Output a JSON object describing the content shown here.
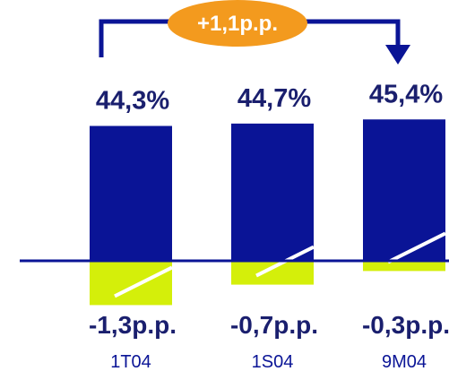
{
  "chart_data": {
    "type": "bar",
    "title": "",
    "categories": [
      "1T04",
      "1S04",
      "9M04"
    ],
    "series": [
      {
        "values": [
          44.3,
          44.7,
          45.4
        ],
        "labels": [
          "44,3%",
          "44,7%",
          "45,4%"
        ]
      },
      {
        "values": [
          -1.3,
          -0.7,
          -0.3
        ],
        "labels": [
          "-1,3p.p.",
          "-0,7p.p.",
          "-0,3p.p."
        ]
      }
    ],
    "annotation": {
      "text": "+1,1p.p.",
      "from": "1T04",
      "to": "9M04"
    },
    "grid": false
  },
  "colors": {
    "positive_bar": "#0a1496",
    "negative_bar": "#d4ef0a",
    "label_text": "#1a1f6e",
    "category_text": "#0a1496",
    "badge_fill": "#f39a1e",
    "arrow": "#0a1496",
    "baseline": "#0a1496"
  }
}
